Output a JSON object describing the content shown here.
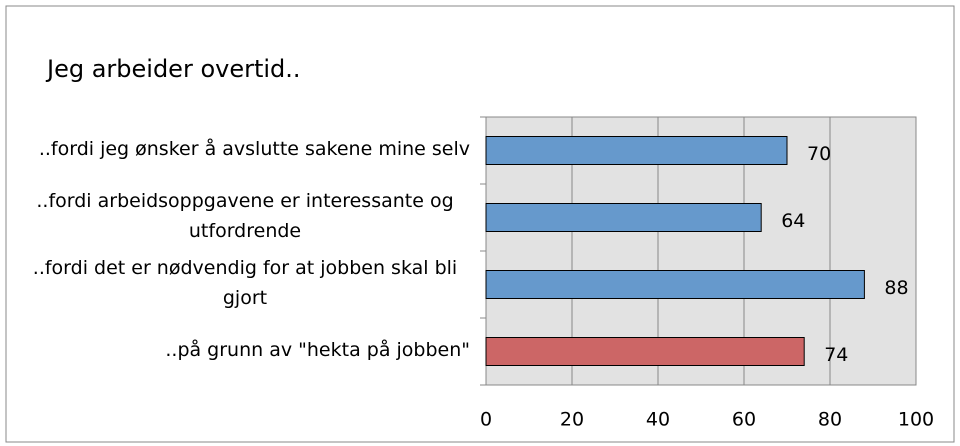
{
  "chart_data": {
    "type": "bar",
    "orientation": "horizontal",
    "title": "Jeg arbeider overtid..",
    "categories": [
      "..fordi jeg ønsker å avslutte sakene mine selv",
      "..fordi arbeidsoppgavene er interessante og utfordrende",
      "..fordi det er nødvendig for at jobben skal bli gjort",
      "..på grunn av \"hekta på jobben\""
    ],
    "values": [
      70,
      64,
      88,
      74
    ],
    "colors": [
      "#6699cc",
      "#6699cc",
      "#6699cc",
      "#cc6666"
    ],
    "xlim": [
      0,
      100
    ],
    "xticks": [
      0,
      20,
      40,
      60,
      80,
      100
    ],
    "grid": true
  }
}
